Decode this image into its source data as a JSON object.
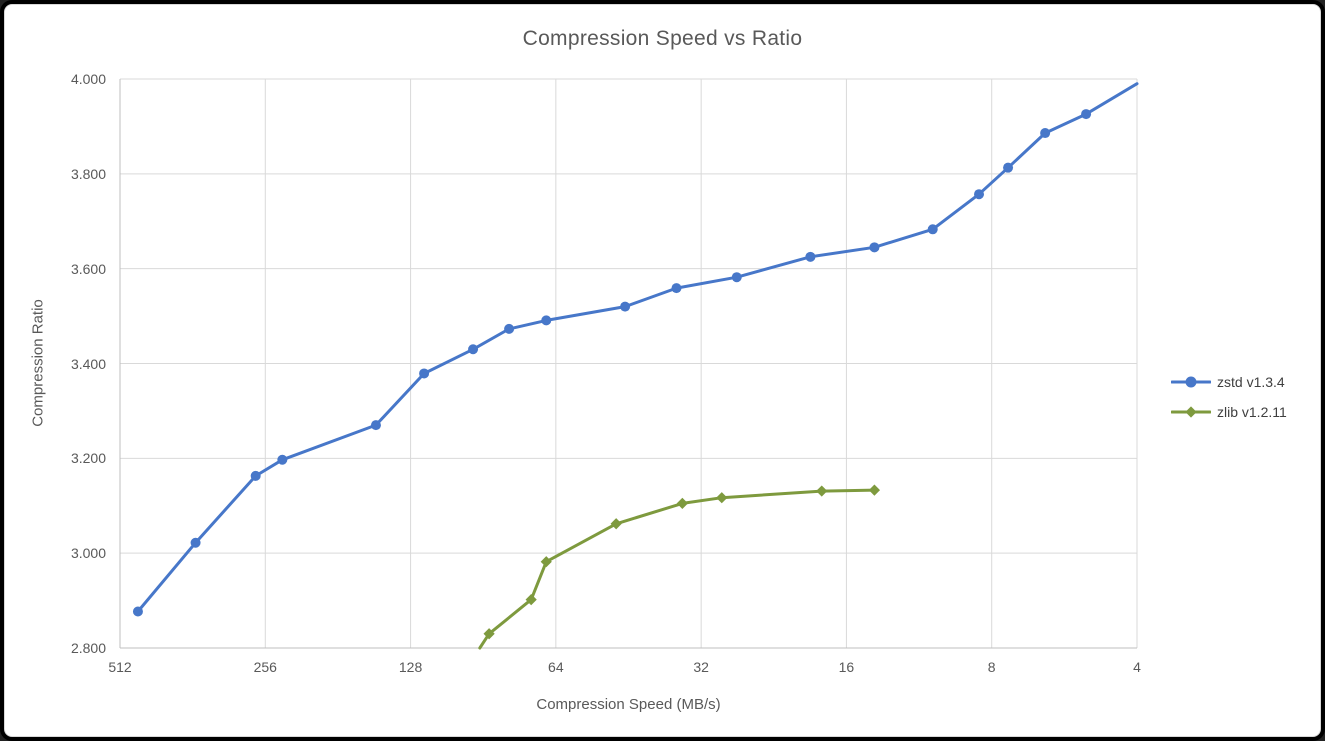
{
  "window": {
    "frame_color": "#000000",
    "background": "#FFFFFF"
  },
  "chart_data": {
    "type": "line",
    "title": "Compression Speed vs Ratio",
    "xlabel": "Compression Speed (MB/s)",
    "ylabel": "Compression Ratio",
    "x_scale": "log2_reversed",
    "xlim": [
      512,
      4
    ],
    "ylim": [
      2.8,
      4.0
    ],
    "x_ticks": [
      512,
      256,
      128,
      64,
      32,
      16,
      8,
      4
    ],
    "y_ticks": [
      2.8,
      3.0,
      3.2,
      3.4,
      3.6,
      3.8,
      4.0
    ],
    "y_tick_format": "3_decimals",
    "grid": true,
    "legend_position": "right",
    "colors": {
      "grid": "#D9D9D9",
      "axis": "#BFBFBF",
      "title_text": "#595959",
      "tick_text": "#595959",
      "legend_text": "#3F3F3F"
    },
    "series": [
      {
        "name": "zstd v1.3.4",
        "color": "#4777C9",
        "marker": "circle",
        "points": [
          {
            "speed": 470,
            "ratio": 2.877
          },
          {
            "speed": 357,
            "ratio": 3.022
          },
          {
            "speed": 268,
            "ratio": 3.163
          },
          {
            "speed": 236,
            "ratio": 3.197
          },
          {
            "speed": 151,
            "ratio": 3.27
          },
          {
            "speed": 120,
            "ratio": 3.379
          },
          {
            "speed": 95,
            "ratio": 3.43
          },
          {
            "speed": 80,
            "ratio": 3.473
          },
          {
            "speed": 67,
            "ratio": 3.491
          },
          {
            "speed": 46,
            "ratio": 3.52
          },
          {
            "speed": 36,
            "ratio": 3.559
          },
          {
            "speed": 27,
            "ratio": 3.582
          },
          {
            "speed": 19,
            "ratio": 3.625
          },
          {
            "speed": 14,
            "ratio": 3.645
          },
          {
            "speed": 10.6,
            "ratio": 3.683
          },
          {
            "speed": 8.5,
            "ratio": 3.757
          },
          {
            "speed": 7.4,
            "ratio": 3.813
          },
          {
            "speed": 6.2,
            "ratio": 3.886
          },
          {
            "speed": 5.1,
            "ratio": 3.926
          },
          {
            "speed": 4.0,
            "ratio": 3.99,
            "marker": false
          }
        ]
      },
      {
        "name": "zlib v1.2.11",
        "color": "#7E9A3E",
        "marker": "diamond",
        "points": [
          {
            "speed": 92,
            "ratio": 2.8,
            "marker": false
          },
          {
            "speed": 88,
            "ratio": 2.83
          },
          {
            "speed": 72,
            "ratio": 2.902
          },
          {
            "speed": 67,
            "ratio": 2.982
          },
          {
            "speed": 48,
            "ratio": 3.062
          },
          {
            "speed": 35,
            "ratio": 3.105
          },
          {
            "speed": 29,
            "ratio": 3.117
          },
          {
            "speed": 18,
            "ratio": 3.131
          },
          {
            "speed": 14,
            "ratio": 3.133
          }
        ]
      }
    ]
  }
}
